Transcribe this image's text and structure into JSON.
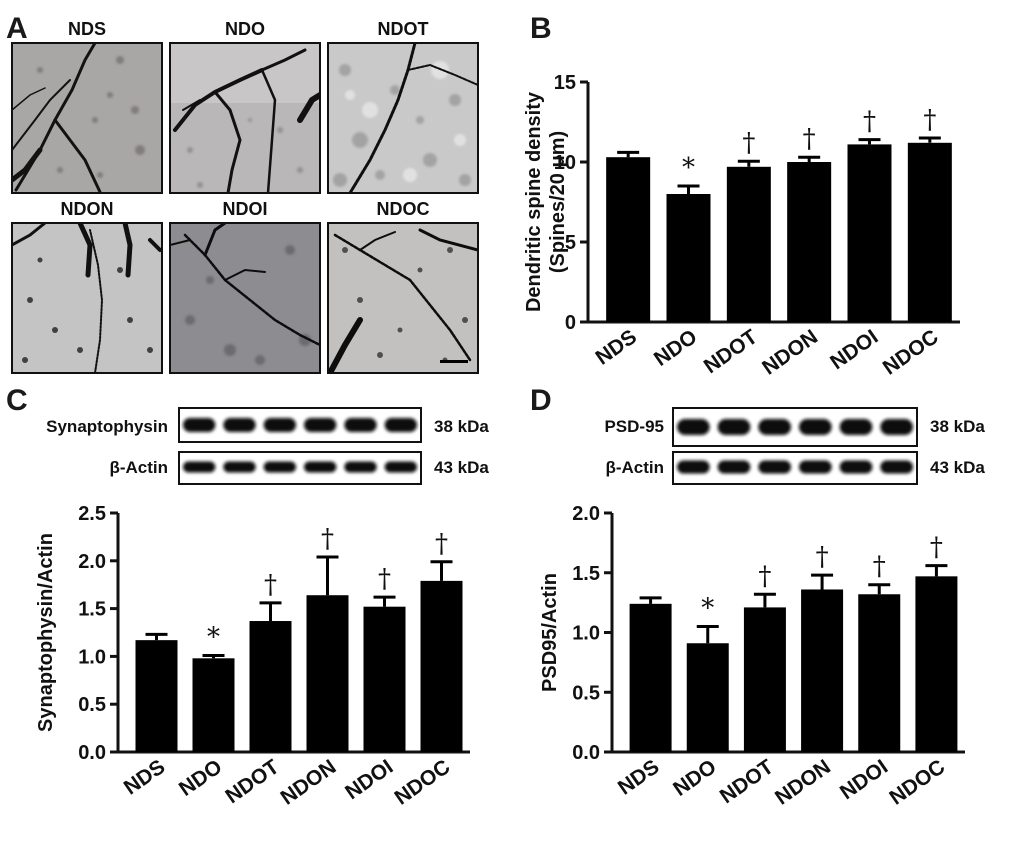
{
  "panel_a": {
    "label": "A",
    "micrographs": [
      "NDS",
      "NDO",
      "NDOT",
      "NDON",
      "NDOI",
      "NDOC"
    ]
  },
  "panel_b": {
    "label": "B"
  },
  "panel_c": {
    "label": "C",
    "blots": [
      {
        "protein": "Synaptophysin",
        "mw": "38 kDa"
      },
      {
        "protein": "β-Actin",
        "mw": "43 kDa"
      }
    ]
  },
  "panel_d": {
    "label": "D",
    "blots": [
      {
        "protein": "PSD-95",
        "mw": "38 kDa"
      },
      {
        "protein": "β-Actin",
        "mw": "43 kDa"
      }
    ]
  },
  "chart_data": [
    {
      "type": "bar",
      "panel": "B",
      "categories": [
        "NDS",
        "NDO",
        "NDOT",
        "NDON",
        "NDOI",
        "NDOC"
      ],
      "values": [
        10.3,
        8.0,
        9.7,
        10.0,
        11.1,
        11.2
      ],
      "errors": [
        0.3,
        0.5,
        0.35,
        0.3,
        0.3,
        0.3
      ],
      "annotations": [
        "",
        "*",
        "†",
        "†",
        "†",
        "†"
      ],
      "ylabel": [
        "Dendritic spine density",
        "(Spines/20 μm)"
      ],
      "ylim": [
        0,
        15
      ],
      "yticks": [
        "0",
        "5",
        "10",
        "15"
      ]
    },
    {
      "type": "bar",
      "panel": "C",
      "categories": [
        "NDS",
        "NDO",
        "NDOT",
        "NDON",
        "NDOI",
        "NDOC"
      ],
      "values": [
        1.17,
        0.98,
        1.37,
        1.64,
        1.52,
        1.79
      ],
      "errors": [
        0.06,
        0.03,
        0.19,
        0.4,
        0.1,
        0.2
      ],
      "annotations": [
        "",
        "*",
        "†",
        "†",
        "†",
        "†"
      ],
      "ylabel": [
        "Synaptophysin/Actin"
      ],
      "ylim": [
        0,
        2.5
      ],
      "yticks": [
        "0.0",
        "0.5",
        "1.0",
        "1.5",
        "2.0",
        "2.5"
      ]
    },
    {
      "type": "bar",
      "panel": "D",
      "categories": [
        "NDS",
        "NDO",
        "NDOT",
        "NDON",
        "NDOI",
        "NDOC"
      ],
      "values": [
        1.24,
        0.91,
        1.21,
        1.36,
        1.32,
        1.47
      ],
      "errors": [
        0.05,
        0.14,
        0.11,
        0.12,
        0.08,
        0.09
      ],
      "annotations": [
        "",
        "*",
        "†",
        "†",
        "†",
        "†"
      ],
      "ylabel": [
        "PSD95/Actin"
      ],
      "ylim": [
        0,
        2.0
      ],
      "yticks": [
        "0.0",
        "0.5",
        "1.0",
        "1.5",
        "2.0"
      ]
    }
  ]
}
